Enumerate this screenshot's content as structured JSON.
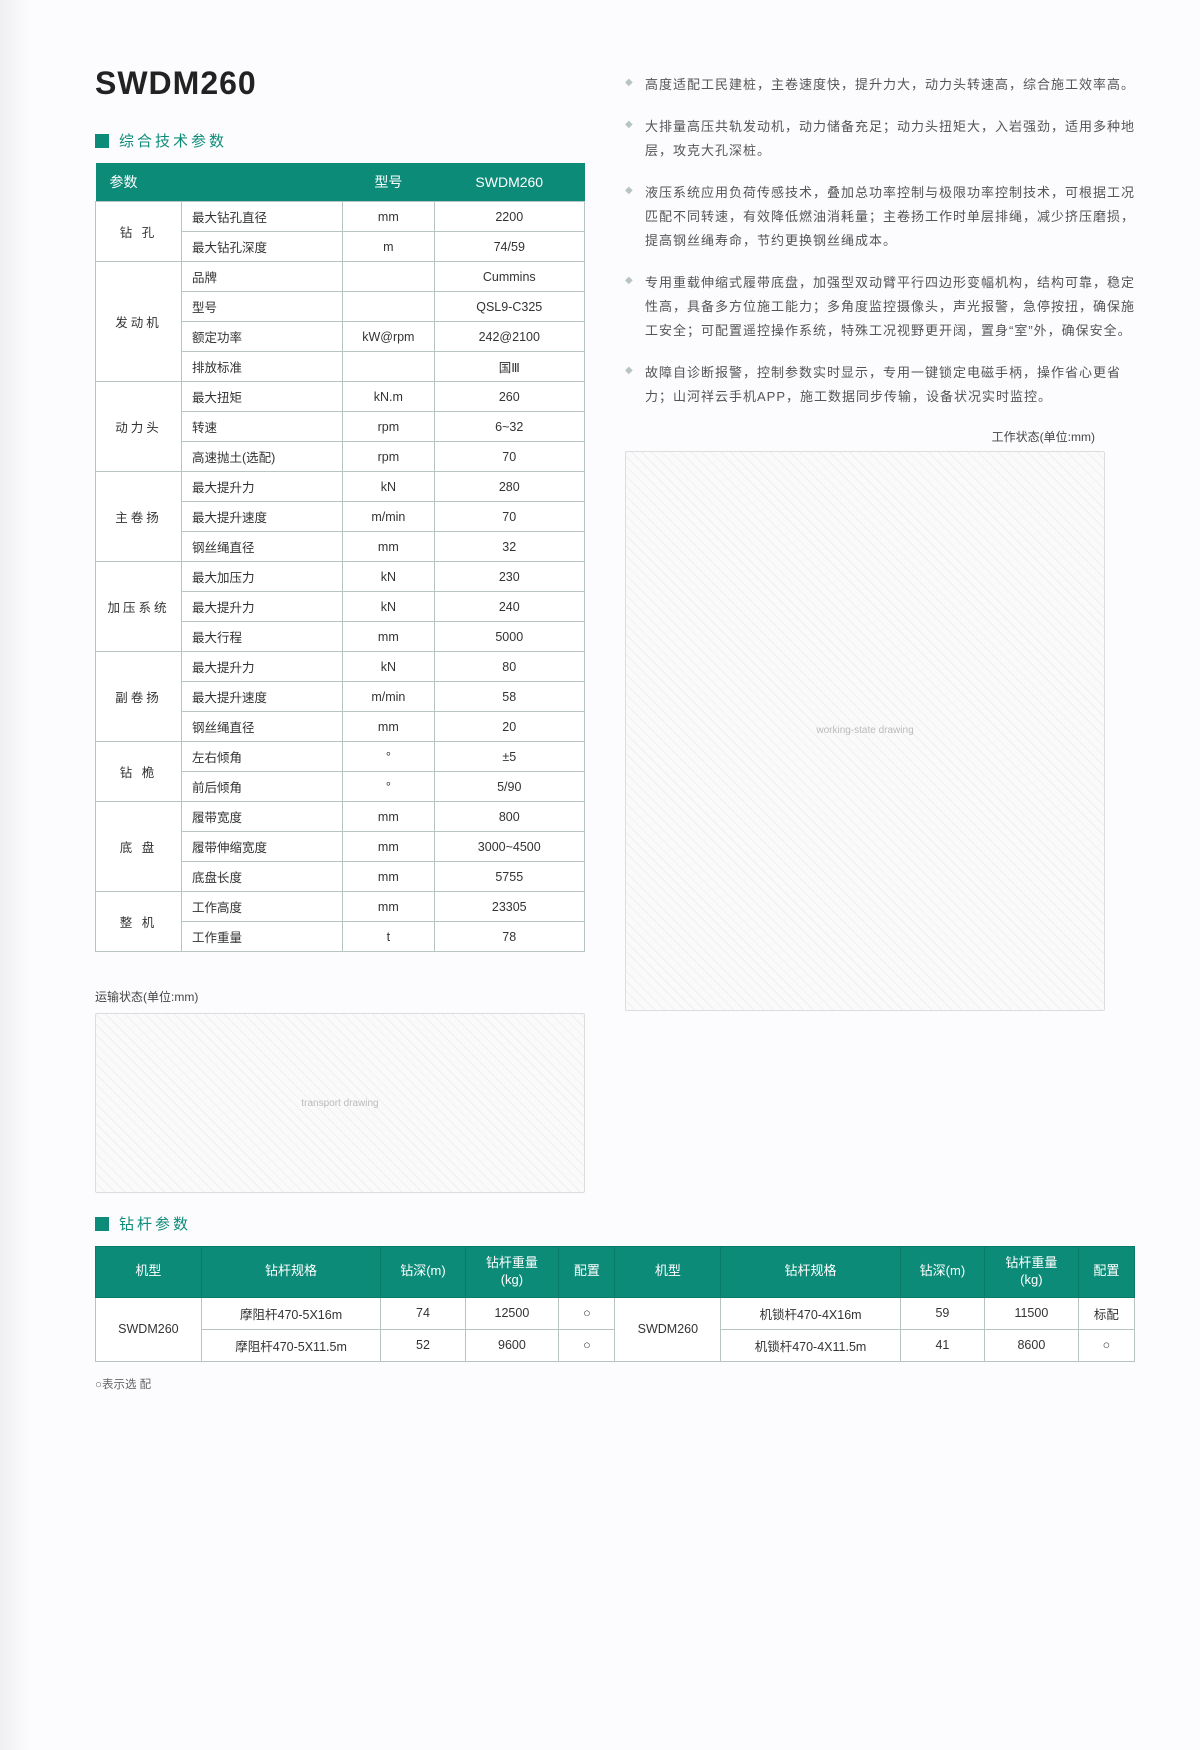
{
  "title": "SWDM260",
  "section_titles": {
    "specs": "综合技术参数",
    "drill": "钻杆参数"
  },
  "spec_table": {
    "head": {
      "param": "参数",
      "model": "型号",
      "value": "SWDM260"
    },
    "groups": [
      {
        "name": "钻 孔",
        "rows": [
          {
            "label": "最大钻孔直径",
            "unit": "mm",
            "value": "2200"
          },
          {
            "label": "最大钻孔深度",
            "unit": "m",
            "value": "74/59"
          }
        ]
      },
      {
        "name": "发动机",
        "rows": [
          {
            "label": "品牌",
            "unit": "",
            "value": "Cummins"
          },
          {
            "label": "型号",
            "unit": "",
            "value": "QSL9-C325"
          },
          {
            "label": "额定功率",
            "unit": "kW@rpm",
            "value": "242@2100"
          },
          {
            "label": "排放标准",
            "unit": "",
            "value": "国Ⅲ"
          }
        ]
      },
      {
        "name": "动力头",
        "rows": [
          {
            "label": "最大扭矩",
            "unit": "kN.m",
            "value": "260"
          },
          {
            "label": "转速",
            "unit": "rpm",
            "value": "6~32"
          },
          {
            "label": "高速抛土(选配)",
            "unit": "rpm",
            "value": "70"
          }
        ]
      },
      {
        "name": "主卷扬",
        "rows": [
          {
            "label": "最大提升力",
            "unit": "kN",
            "value": "280"
          },
          {
            "label": "最大提升速度",
            "unit": "m/min",
            "value": "70"
          },
          {
            "label": "钢丝绳直径",
            "unit": "mm",
            "value": "32"
          }
        ]
      },
      {
        "name": "加压系统",
        "rows": [
          {
            "label": "最大加压力",
            "unit": "kN",
            "value": "230"
          },
          {
            "label": "最大提升力",
            "unit": "kN",
            "value": "240"
          },
          {
            "label": "最大行程",
            "unit": "mm",
            "value": "5000"
          }
        ]
      },
      {
        "name": "副卷扬",
        "rows": [
          {
            "label": "最大提升力",
            "unit": "kN",
            "value": "80"
          },
          {
            "label": "最大提升速度",
            "unit": "m/min",
            "value": "58"
          },
          {
            "label": "钢丝绳直径",
            "unit": "mm",
            "value": "20"
          }
        ]
      },
      {
        "name": "钻 桅",
        "rows": [
          {
            "label": "左右倾角",
            "unit": "°",
            "value": "±5"
          },
          {
            "label": "前后倾角",
            "unit": "°",
            "value": "5/90"
          }
        ]
      },
      {
        "name": "底 盘",
        "rows": [
          {
            "label": "履带宽度",
            "unit": "mm",
            "value": "800"
          },
          {
            "label": "履带伸缩宽度",
            "unit": "mm",
            "value": "3000~4500"
          },
          {
            "label": "底盘长度",
            "unit": "mm",
            "value": "5755"
          }
        ]
      },
      {
        "name": "整 机",
        "rows": [
          {
            "label": "工作高度",
            "unit": "mm",
            "value": "23305"
          },
          {
            "label": "工作重量",
            "unit": "t",
            "value": "78"
          }
        ]
      }
    ]
  },
  "features": [
    "高度适配工民建桩，主卷速度快，提升力大，动力头转速高，综合施工效率高。",
    "大排量高压共轨发动机，动力储备充足；动力头扭矩大，入岩强劲，适用多种地层，攻克大孔深桩。",
    "液压系统应用负荷传感技术，叠加总功率控制与极限功率控制技术，可根据工况匹配不同转速，有效降低燃油消耗量；主卷扬工作时单层排绳，减少挤压磨损，提高钢丝绳寿命，节约更换钢丝绳成本。",
    "专用重载伸缩式履带底盘，加强型双动臂平行四边形变幅机构，结构可靠，稳定性高，具备多方位施工能力；多角度监控摄像头，声光报警，急停按扭，确保施工安全；可配置遥控操作系统，特殊工况视野更开阔，置身“室”外，确保安全。",
    "故障自诊断报警，控制参数实时显示，专用一键锁定电磁手柄，操作省心更省力；山河祥云手机APP，施工数据同步传输，设备状况实时监控。"
  ],
  "labels": {
    "work_state": "工作状态(单位:mm)",
    "transport_state": "运输状态(单位:mm)"
  },
  "drill_table": {
    "head": [
      "机型",
      "钻杆规格",
      "钻深(m)",
      "钻杆重量\n(kg)",
      "配置",
      "机型",
      "钻杆规格",
      "钻深(m)",
      "钻杆重量\n(kg)",
      "配置"
    ],
    "rows": [
      {
        "model_l": "SWDM260",
        "spec_l": "摩阻杆470-5X16m",
        "depth_l": "74",
        "weight_l": "12500",
        "cfg_l": "○",
        "model_r": "SWDM260",
        "spec_r": "机锁杆470-4X16m",
        "depth_r": "59",
        "weight_r": "11500",
        "cfg_r": "标配"
      },
      {
        "spec_l": "摩阻杆470-5X11.5m",
        "depth_l": "52",
        "weight_l": "9600",
        "cfg_l": "○",
        "spec_r": "机锁杆470-4X11.5m",
        "depth_r": "41",
        "weight_r": "8600",
        "cfg_r": "○"
      }
    ]
  },
  "footnote": "○表示选 配",
  "colors": {
    "accent": "#0d8b79",
    "border": "#b8c4c2",
    "text": "#333333",
    "text_muted": "#555555",
    "background": "#fcfcfe"
  }
}
